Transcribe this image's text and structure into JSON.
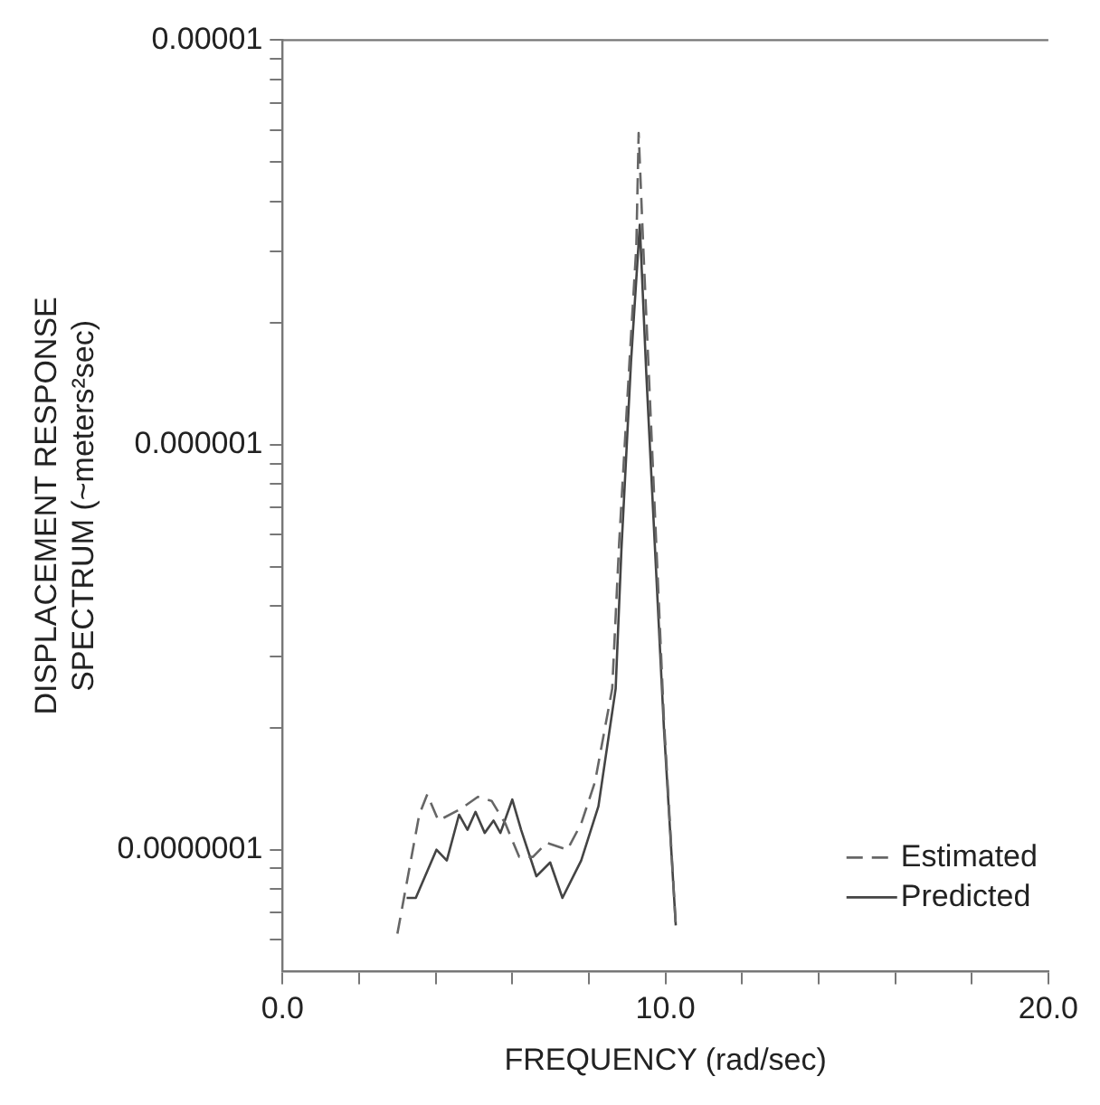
{
  "chart_data": {
    "type": "line",
    "xlabel": "FREQUENCY (rad/sec)",
    "ylabel": "DISPLACEMENT RESPONSE\nSPECTRUM (~meters²sec)",
    "log": "y",
    "legend": "bottom right",
    "grid": false,
    "marker": "none",
    "xlim": [
      0,
      20
    ],
    "xticks": [
      {
        "value": 0,
        "label": "0.0"
      },
      {
        "value": 2,
        "label": null
      },
      {
        "value": 4,
        "label": null
      },
      {
        "value": 6,
        "label": null
      },
      {
        "value": 8,
        "label": null
      },
      {
        "value": 10,
        "label": "10.0"
      },
      {
        "value": 12,
        "label": null
      },
      {
        "value": 14,
        "label": null
      },
      {
        "value": 16,
        "label": null
      },
      {
        "value": 18,
        "label": null
      },
      {
        "value": 20,
        "label": "20.0"
      }
    ],
    "ylim": [
      5e-08,
      1e-05
    ],
    "yticks": [
      {
        "value": 6e-08,
        "label": null
      },
      {
        "value": 7e-08,
        "label": null
      },
      {
        "value": 8e-08,
        "label": null
      },
      {
        "value": 9e-08,
        "label": null
      },
      {
        "value": 1e-07,
        "label": "0.0000001"
      },
      {
        "value": 2e-07,
        "label": null
      },
      {
        "value": 3e-07,
        "label": null
      },
      {
        "value": 4e-07,
        "label": null
      },
      {
        "value": 5e-07,
        "label": null
      },
      {
        "value": 6e-07,
        "label": null
      },
      {
        "value": 7e-07,
        "label": null
      },
      {
        "value": 8e-07,
        "label": null
      },
      {
        "value": 9e-07,
        "label": null
      },
      {
        "value": 1e-06,
        "label": "0.000001"
      },
      {
        "value": 2e-06,
        "label": null
      },
      {
        "value": 3e-06,
        "label": null
      },
      {
        "value": 4e-06,
        "label": null
      },
      {
        "value": 5e-06,
        "label": null
      },
      {
        "value": 6e-06,
        "label": null
      },
      {
        "value": 7e-06,
        "label": null
      },
      {
        "value": 8e-06,
        "label": null
      },
      {
        "value": 9e-06,
        "label": null
      },
      {
        "value": 1e-05,
        "label": "0.00001"
      }
    ],
    "series": [
      {
        "name": "Estimated",
        "color": "#666666",
        "line_style": "dashed",
        "x": [
          3.0,
          3.57,
          3.78,
          4.07,
          4.65,
          5.1,
          5.46,
          5.82,
          6.18,
          6.54,
          6.9,
          7.44,
          7.8,
          8.16,
          8.61,
          8.79,
          9.06,
          9.24,
          9.3,
          9.42,
          9.96,
          10.27
        ],
        "values": [
          6.2e-08,
          1.22e-07,
          1.37e-07,
          1.18e-07,
          1.26e-07,
          1.35e-07,
          1.32e-07,
          1.16e-07,
          9.6e-08,
          9.6e-08,
          1.04e-07,
          1e-07,
          1.16e-07,
          1.47e-07,
          2.5e-07,
          5.7e-07,
          1.6e-06,
          3.1e-06,
          5.9e-06,
          3.1e-06,
          2.1e-07,
          6.5e-08
        ]
      },
      {
        "name": "Predicted",
        "color": "#444444",
        "line_style": "solid",
        "x": [
          3.24,
          3.48,
          4.02,
          4.29,
          4.61,
          4.83,
          5.04,
          5.28,
          5.51,
          5.69,
          6.0,
          6.23,
          6.63,
          6.99,
          7.31,
          7.8,
          8.25,
          8.7,
          8.85,
          9.1,
          9.33,
          9.5,
          9.96,
          10.27
        ],
        "values": [
          7.6e-08,
          7.6e-08,
          1e-07,
          9.4e-08,
          1.22e-07,
          1.12e-07,
          1.24e-07,
          1.1e-07,
          1.18e-07,
          1.1e-07,
          1.33e-07,
          1.12e-07,
          8.6e-08,
          9.3e-08,
          7.6e-08,
          9.4e-08,
          1.28e-07,
          2.5e-07,
          5.5e-07,
          1.6e-06,
          3.5e-06,
          1.5e-06,
          2e-07,
          6.5e-08
        ]
      }
    ]
  }
}
